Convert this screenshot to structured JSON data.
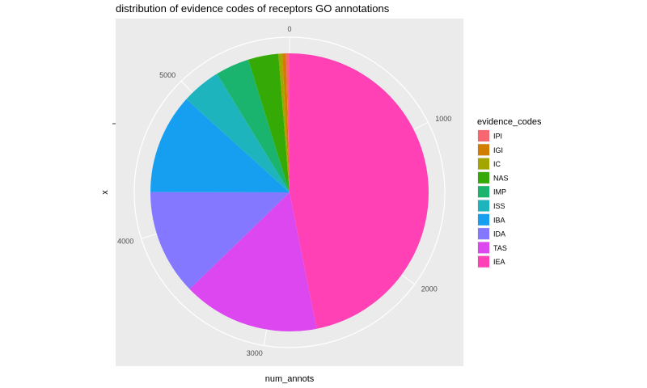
{
  "chart_data": {
    "type": "pie",
    "title": "distribution of evidence codes of receptors GO annotations",
    "xlabel": "num_annots",
    "ylabel": "x",
    "theta_ticks": [
      "0",
      "1000",
      "2000",
      "3000",
      "4000",
      "5000"
    ],
    "legend_title": "evidence_codes",
    "legend_position": "right",
    "grid": true,
    "total": 5700,
    "slices": [
      {
        "label": "IEA",
        "value": 2672,
        "color": "#FF41B5"
      },
      {
        "label": "TAS",
        "value": 905,
        "color": "#DC47F0"
      },
      {
        "label": "IDA",
        "value": 700,
        "color": "#8378FF"
      },
      {
        "label": "IBA",
        "value": 665,
        "color": "#169FF0"
      },
      {
        "label": "ISS",
        "value": 260,
        "color": "#1EB4BE"
      },
      {
        "label": "IMP",
        "value": 225,
        "color": "#1BB46E"
      },
      {
        "label": "NAS",
        "value": 200,
        "color": "#35AA07"
      },
      {
        "label": "IC",
        "value": 25,
        "color": "#A3A500"
      },
      {
        "label": "IGI",
        "value": 25,
        "color": "#D17E00"
      },
      {
        "label": "IPI",
        "value": 23,
        "color": "#F8676F"
      }
    ],
    "legend_order": [
      "IPI",
      "IGI",
      "IC",
      "NAS",
      "IMP",
      "ISS",
      "IBA",
      "IDA",
      "TAS",
      "IEA"
    ]
  }
}
